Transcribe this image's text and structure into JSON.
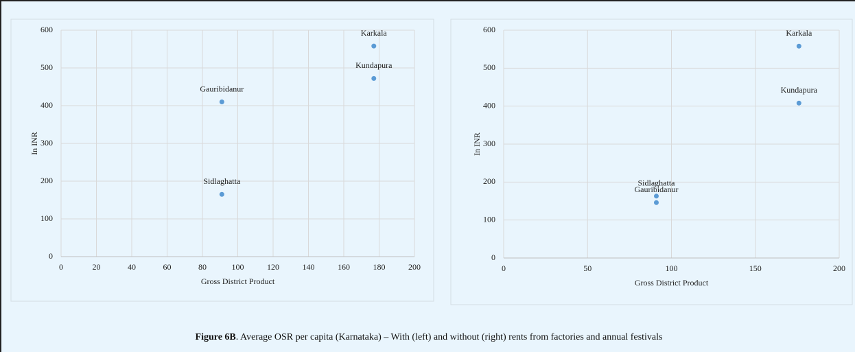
{
  "chart_data": [
    {
      "type": "scatter",
      "x_label": "Gross District Product",
      "y_label": "In INR",
      "point_labels": [
        "Karkala",
        "Kundapura",
        "Gauribidanur",
        "Sidlaghatta"
      ],
      "x": [
        177,
        177,
        91,
        91
      ],
      "values": [
        558,
        472,
        410,
        165
      ],
      "color": "#5b9bd5",
      "xlim": [
        0,
        200
      ],
      "xticks": [
        0,
        20,
        40,
        60,
        80,
        100,
        120,
        140,
        160,
        180,
        200
      ],
      "ylim": [
        0,
        600
      ],
      "yticks": [
        0,
        100,
        200,
        300,
        400,
        500,
        600
      ],
      "grid": true
    },
    {
      "type": "scatter",
      "x_label": "Gross District Product",
      "y_label": "In INR",
      "point_labels": [
        "Karkala",
        "Kundapura",
        "Sidlaghatta",
        "Gauribidanur"
      ],
      "x": [
        176,
        176,
        91,
        91
      ],
      "values": [
        558,
        408,
        163,
        146
      ],
      "color": "#5b9bd5",
      "xlim": [
        0,
        200
      ],
      "xticks": [
        0,
        50,
        100,
        150,
        200
      ],
      "ylim": [
        0,
        600
      ],
      "yticks": [
        0,
        100,
        200,
        300,
        400,
        500,
        600
      ],
      "grid": true
    }
  ],
  "caption": {
    "label": "Figure 6B",
    "text": ". Average OSR per capita (Karnataka) – With (left) and without (right) rents from factories and annual festivals"
  }
}
